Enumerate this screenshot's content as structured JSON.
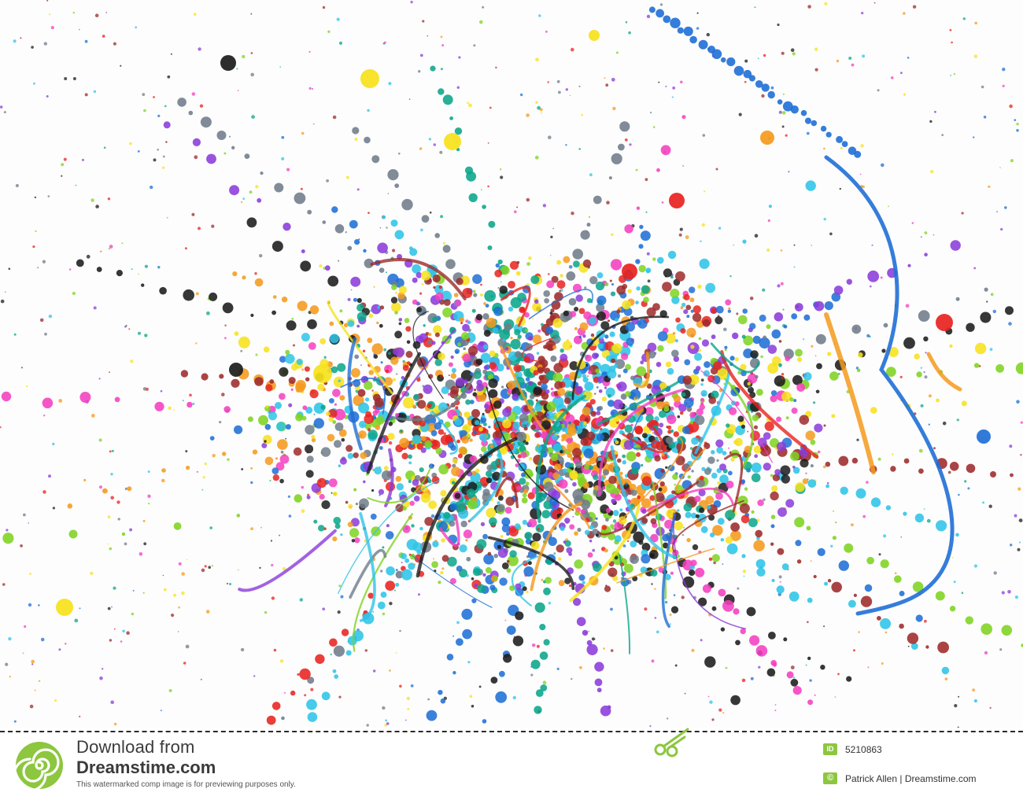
{
  "image": {
    "subject": "paint-splatter",
    "colors": [
      "#e8231f",
      "#1f6fd6",
      "#f43fbf",
      "#f7e11b",
      "#7ed321",
      "#0aa58a",
      "#8b3bd9",
      "#1b1b1b",
      "#f59a1c",
      "#9e2a2a",
      "#6f7c8a",
      "#2ec4e8"
    ]
  },
  "footer": {
    "download_line1": "Download from",
    "download_line2": "Dreamstime.com",
    "preview_note": "This watermarked comp image is for previewing purposes only.",
    "id_badge": "ID",
    "id_number": "5210863",
    "copyright_symbol": "©",
    "copyright_text": "Patrick Allen | Dreamstime.com",
    "brand_color": "#8dc63f",
    "logo_icon": "dreamstime-spiral-icon",
    "cut_icon": "scissors-icon"
  }
}
